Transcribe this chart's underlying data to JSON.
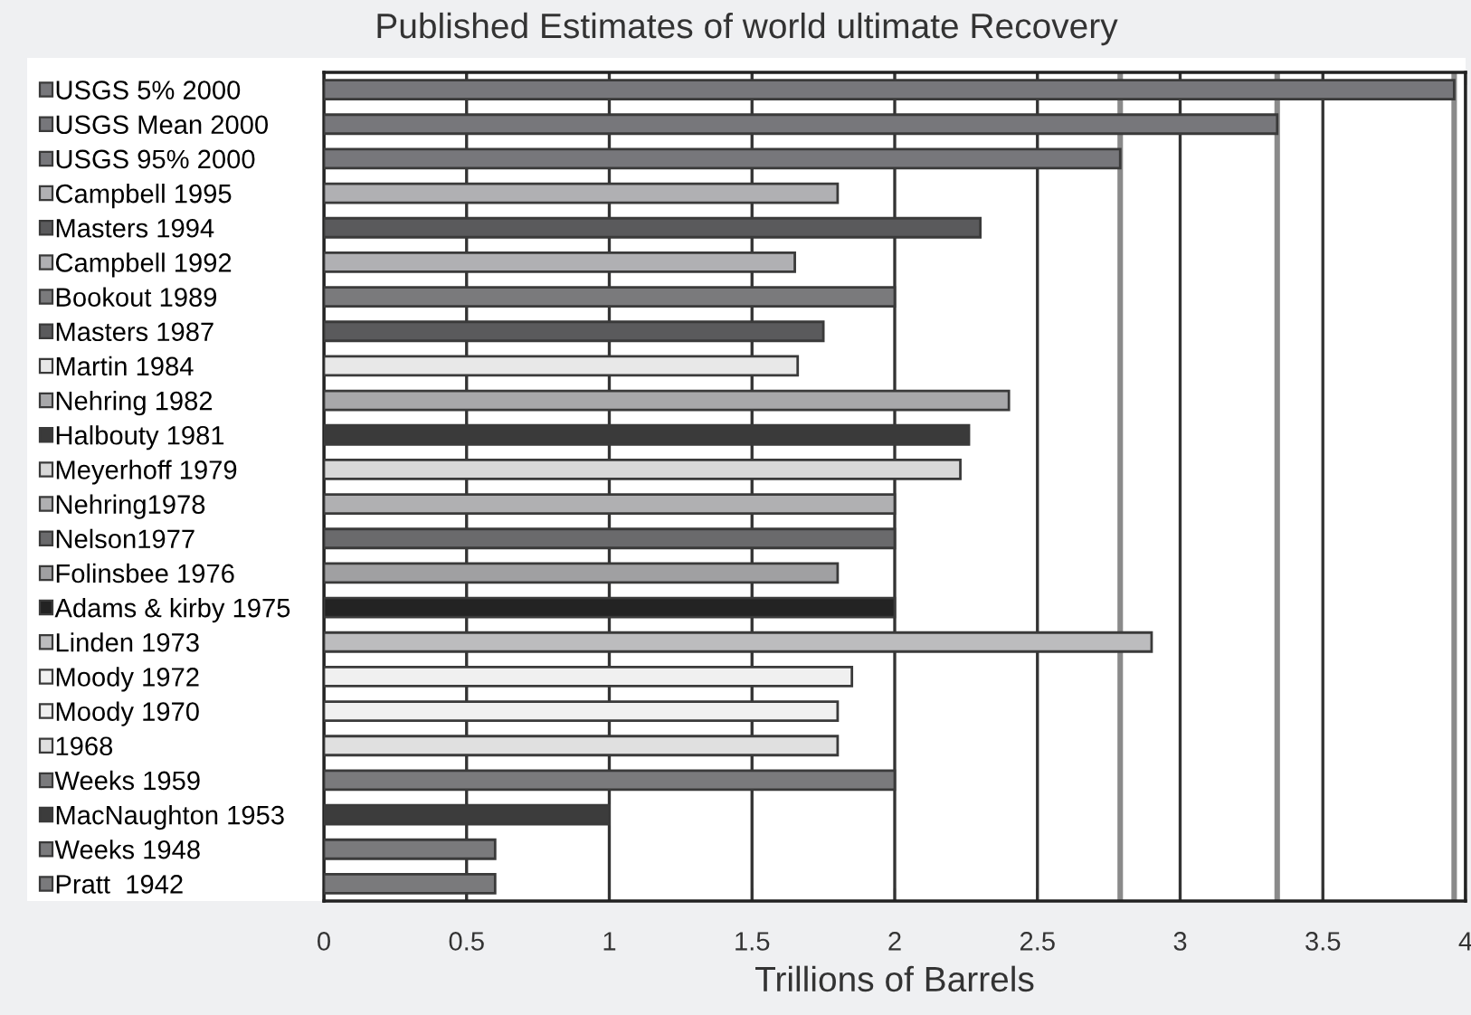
{
  "chart_data": {
    "type": "bar",
    "orientation": "horizontal",
    "title": "Published Estimates of world ultimate Recovery",
    "xlabel": "Trillions of Barrels",
    "categories": [
      "USGS 5% 2000",
      "USGS Mean 2000",
      "USGS 95% 2000",
      "Campbell 1995",
      "Masters 1994",
      "Campbell 1992",
      "Bookout 1989",
      "Masters 1987",
      "Martin 1984",
      "Nehring 1982",
      "Halbouty 1981",
      "Meyerhoff 1979",
      "Nehring1978",
      "Nelson1977",
      "Folinsbee 1976",
      "Adams & kirby 1975",
      "Linden 1973",
      "Moody 1972",
      "Moody 1970",
      "1968",
      "Weeks 1959",
      "MacNaughton 1953",
      "Weeks 1948",
      "Pratt  1942"
    ],
    "values": [
      3.96,
      3.34,
      2.79,
      1.8,
      2.3,
      1.65,
      2.0,
      1.75,
      1.66,
      2.4,
      2.26,
      2.23,
      2.0,
      2.0,
      1.8,
      2.0,
      2.9,
      1.85,
      1.8,
      1.8,
      2.0,
      1.0,
      0.6,
      0.6
    ],
    "colors": [
      "#77777b",
      "#77777b",
      "#77777b",
      "#b0b0b3",
      "#5a5a5c",
      "#b0b0b3",
      "#7a7a7c",
      "#5a5a5c",
      "#e8e8e8",
      "#a8a8aa",
      "#3a3a3a",
      "#d8d8d8",
      "#b0b0b2",
      "#6a6a6c",
      "#a0a0a2",
      "#232323",
      "#bcbcbe",
      "#f0f0f0",
      "#f0f0f0",
      "#e0e0e0",
      "#7a7a7c",
      "#3c3c3c",
      "#7a7a7c",
      "#7a7a7c"
    ],
    "xlim": [
      0,
      4
    ],
    "xticks": [
      0,
      0.5,
      1,
      1.5,
      2,
      2.5,
      3,
      3.5,
      4
    ],
    "grid": "x",
    "ref_lines": [
      {
        "axis": "x",
        "value": 2.79,
        "color": "#8a8a8a"
      },
      {
        "axis": "x",
        "value": 3.34,
        "color": "#8a8a8a"
      },
      {
        "axis": "x",
        "value": 3.96,
        "color": "#8a8a8a"
      }
    ]
  }
}
